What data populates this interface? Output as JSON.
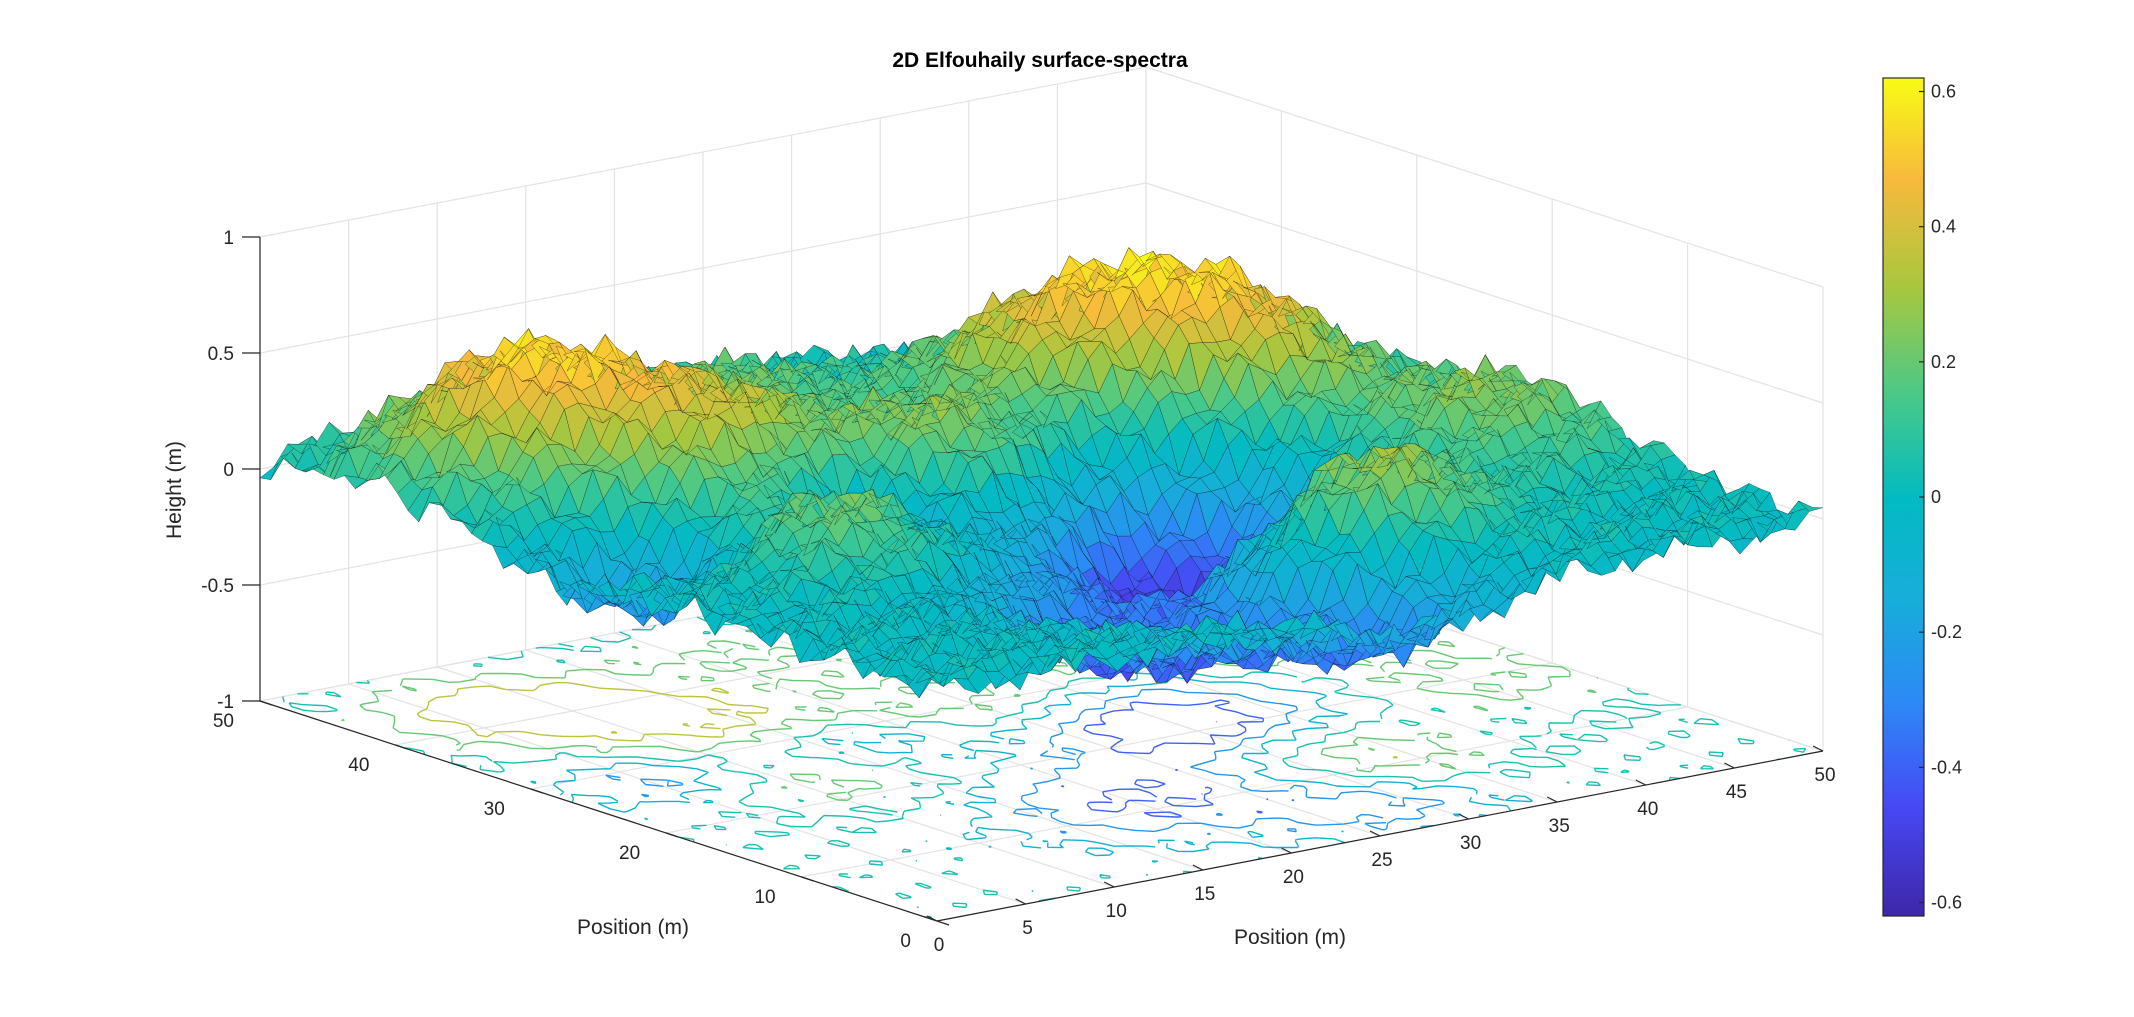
{
  "chart_data": {
    "type": "surface",
    "title": "2D Elfouhaily surface-spectra",
    "xlabel": "Position (m)",
    "ylabel": "Position (m)",
    "zlabel": "Height (m)",
    "xlim": [
      0,
      50
    ],
    "ylim": [
      0,
      50
    ],
    "zlim": [
      -1,
      1
    ],
    "xticks": [
      "0",
      "5",
      "10",
      "15",
      "20",
      "25",
      "30",
      "35",
      "40",
      "45",
      "50"
    ],
    "yticks": [
      "0",
      "10",
      "20",
      "30",
      "40",
      "50"
    ],
    "zticks": [
      "-1",
      "-0.5",
      "0",
      "0.5",
      "1"
    ],
    "colorbar": {
      "limits": [
        -0.62,
        0.62
      ],
      "ticks": [
        "-0.6",
        "-0.4",
        "-0.2",
        "0",
        "0.2",
        "0.4",
        "0.6"
      ],
      "colormap": "parula"
    },
    "surface_height_range": [
      -0.62,
      0.6
    ],
    "contour_projection_z": -1,
    "grid": true,
    "colors": {
      "mesh_edge": "#000000",
      "axis": "#262626",
      "grid": "#e3e3e3"
    }
  }
}
